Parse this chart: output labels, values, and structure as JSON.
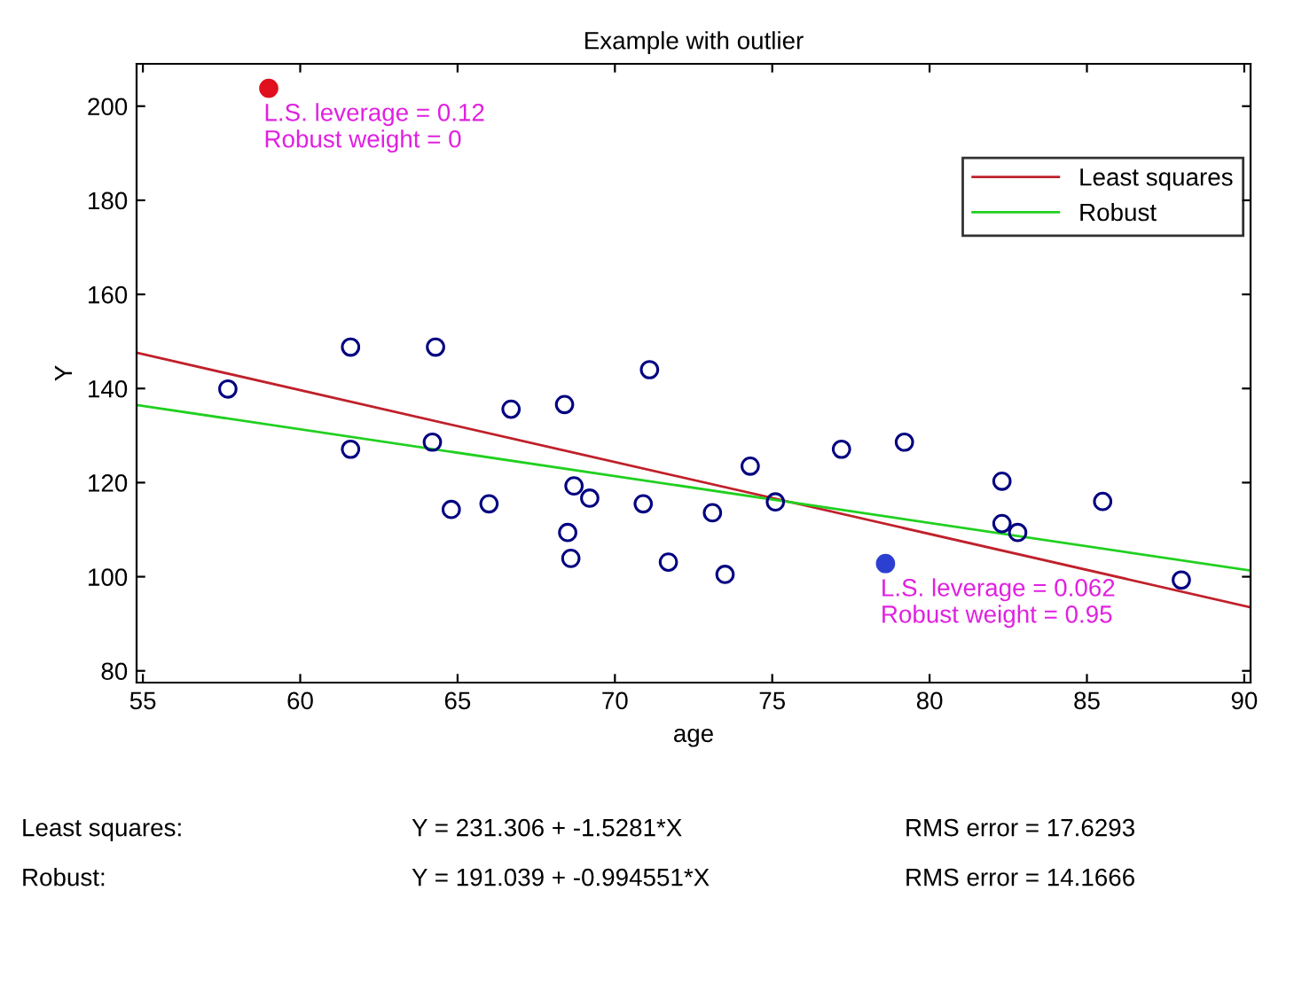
{
  "chart_data": {
    "type": "scatter",
    "title": "Example with outlier",
    "xlabel": "age",
    "ylabel": "Y",
    "xlim": [
      54.8,
      90.2
    ],
    "ylim": [
      77.5,
      209
    ],
    "xticks": [
      55,
      60,
      65,
      70,
      75,
      80,
      85,
      90
    ],
    "yticks": [
      80,
      100,
      120,
      140,
      160,
      180,
      200
    ],
    "grid": false,
    "legend": "top right",
    "series": [
      {
        "marker": "circle",
        "color": "#000080",
        "x": [
          57.7,
          61.6,
          61.6,
          64.3,
          64.2,
          64.8,
          66.0,
          66.7,
          68.4,
          68.7,
          69.2,
          68.5,
          68.6,
          70.9,
          71.1,
          71.7,
          73.1,
          73.5,
          74.3,
          75.1,
          77.2,
          79.2,
          82.3,
          82.3,
          82.8,
          85.5,
          88.0
        ],
        "values": [
          139.9,
          148.8,
          127.1,
          148.8,
          128.6,
          114.3,
          115.5,
          135.6,
          136.6,
          119.3,
          116.7,
          109.4,
          103.9,
          115.5,
          144.0,
          103.1,
          113.6,
          100.5,
          123.5,
          115.9,
          127.1,
          128.6,
          120.3,
          111.3,
          109.4,
          116.0,
          99.3
        ]
      },
      {
        "marker": "circle",
        "color": "#e0101e",
        "x": [
          59.0
        ],
        "values": [
          203.8
        ]
      },
      {
        "marker": "circle",
        "color": "#2b3fd0",
        "x": [
          78.6
        ],
        "values": [
          102.8
        ]
      },
      {
        "type": "line",
        "marker": "none",
        "name": "Least squares",
        "color": "#c0202a",
        "x": [
          54.8,
          90.2
        ],
        "values": [
          147.6,
          93.5
        ]
      },
      {
        "type": "line",
        "marker": "none",
        "name": "Robust",
        "color": "#20d020",
        "x": [
          54.8,
          90.2
        ],
        "values": [
          136.5,
          101.3
        ]
      }
    ],
    "annotations": [
      {
        "text": "L.S. leverage = 0.12\nRobust weight = 0",
        "x": 59.0,
        "y": 203.8
      },
      {
        "text": "L.S. leverage = 0.062\nRobust weight = 0.95",
        "x": 78.6,
        "y": 102.8
      },
      "Least squares:",
      "Y = 231.306 + -1.5281*X",
      "RMS error = 17.6293",
      "Robust:",
      "Y = 191.039 + -0.994551*X",
      "RMS error = 14.1666"
    ]
  }
}
